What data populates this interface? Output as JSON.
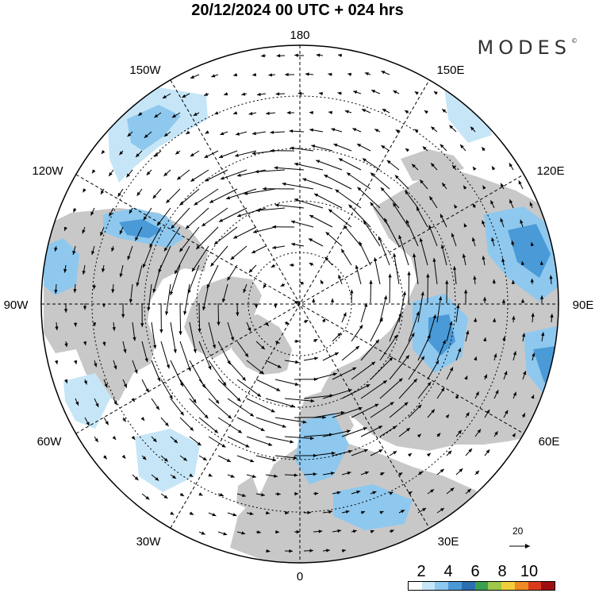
{
  "header": {
    "title": "20/12/2024  00 UTC  + 024 hrs",
    "brand": "MODES",
    "brand_mark": "©"
  },
  "map": {
    "projection": "north polar stereographic",
    "meridian_labels": [
      "180",
      "150E",
      "120E",
      "90E",
      "60E",
      "30E",
      "0",
      "30W",
      "60W",
      "90W",
      "120W",
      "150W"
    ],
    "land_color": "#c8c8c8",
    "ocean_color": "#ffffff",
    "graticule": "dotted, every 30 degrees longitude and 10 degrees latitude"
  },
  "reference_vector": {
    "value": "20"
  },
  "colorbar": {
    "labels": [
      "2",
      "4",
      "6",
      "8",
      "10"
    ],
    "colors": [
      "#ffffff",
      "#c6e6f7",
      "#8ec8ee",
      "#4a9ad8",
      "#2c6fb0",
      "#3aa050",
      "#9dc84a",
      "#f2cf3a",
      "#f08a24",
      "#d93a1e",
      "#9e0f12"
    ]
  }
}
